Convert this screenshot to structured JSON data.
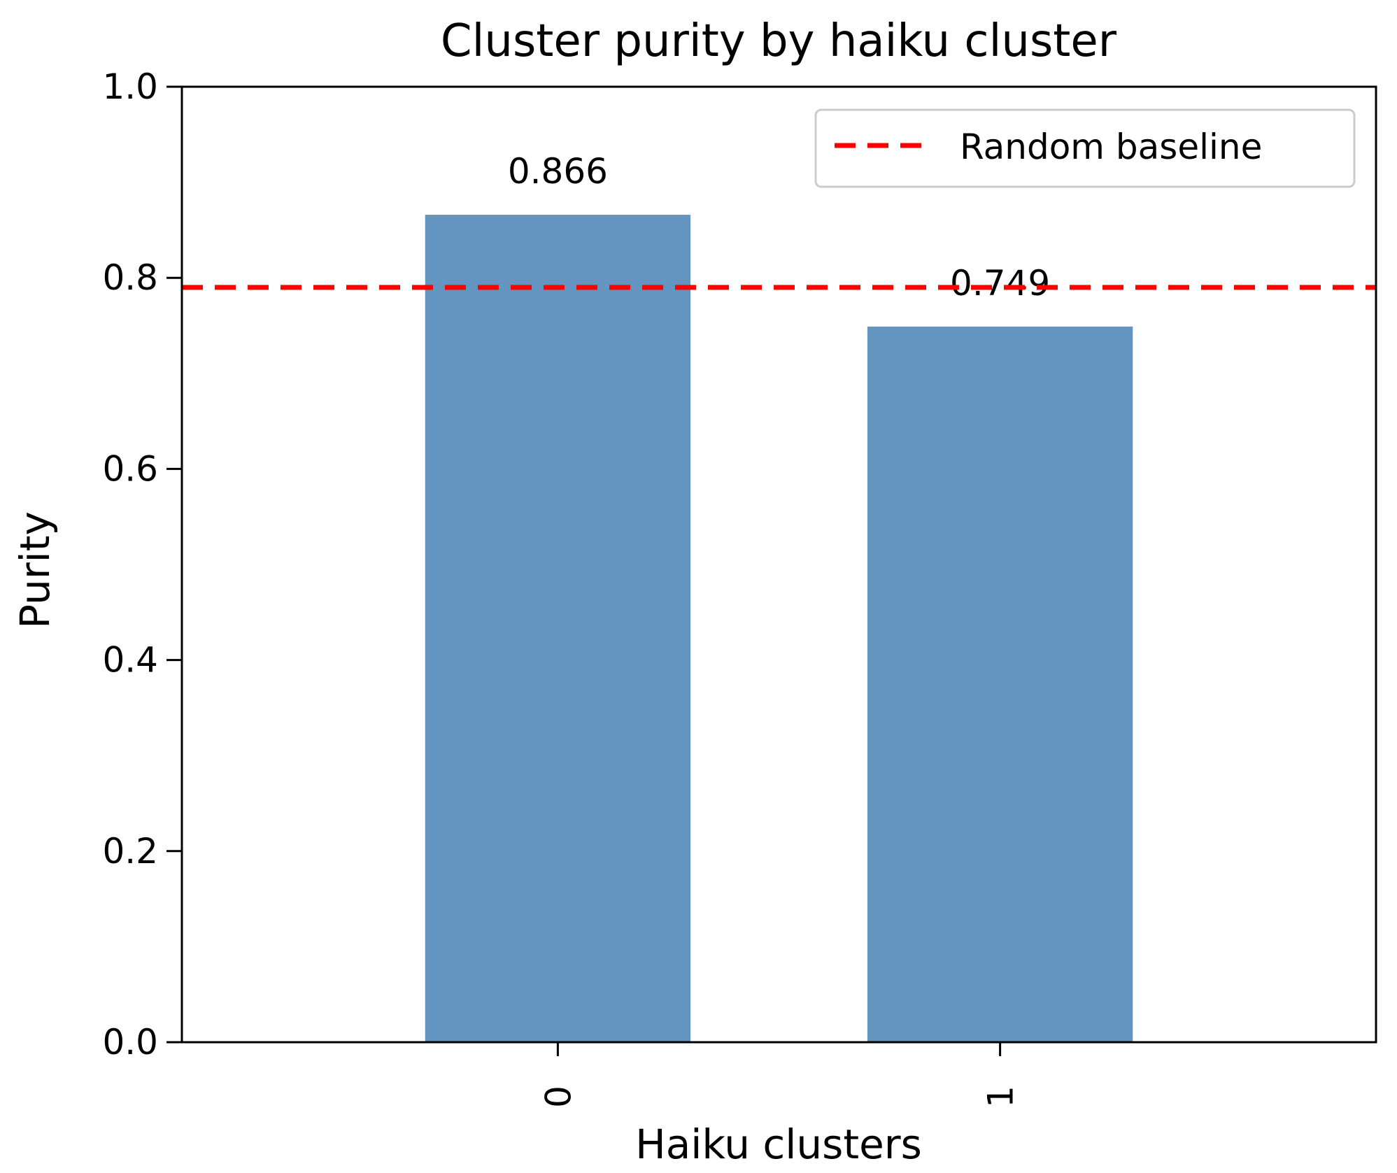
{
  "chart_data": {
    "type": "bar",
    "title": "Cluster purity by haiku cluster",
    "xlabel": "Haiku clusters",
    "ylabel": "Purity",
    "categories": [
      "0",
      "1"
    ],
    "values": [
      0.866,
      0.749
    ],
    "value_labels": [
      "0.866",
      "0.749"
    ],
    "ylim": [
      0.0,
      1.0
    ],
    "yticks": [
      0.0,
      0.2,
      0.4,
      0.6,
      0.8,
      1.0
    ],
    "ytick_labels": [
      "0.0",
      "0.2",
      "0.4",
      "0.6",
      "0.8",
      "1.0"
    ],
    "baseline": {
      "name": "Random baseline",
      "value": 0.79
    },
    "legend": {
      "placement": "top-right",
      "entries": [
        "Random baseline"
      ]
    },
    "colors": {
      "bar": "#6495c0",
      "baseline": "#ff0000",
      "axis": "#000000"
    },
    "grid": false
  }
}
